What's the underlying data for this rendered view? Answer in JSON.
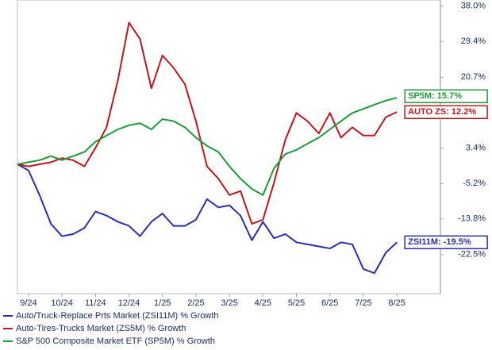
{
  "chart_data": {
    "type": "line",
    "x": [
      -0.33,
      0,
      0.33,
      0.67,
      1,
      1.33,
      1.67,
      2,
      2.33,
      2.67,
      3,
      3.33,
      3.67,
      4,
      4.33,
      4.67,
      5,
      5.33,
      5.67,
      6,
      6.33,
      6.67,
      7,
      7.33,
      7.67,
      8,
      8.33,
      8.67,
      9,
      9.33,
      9.67,
      10,
      10.33,
      10.67,
      11
    ],
    "xlim": [
      -0.33,
      12.3
    ],
    "xticks": [
      {
        "value": 0,
        "label": "9/24"
      },
      {
        "value": 1,
        "label": "10/24"
      },
      {
        "value": 2,
        "label": "11/24"
      },
      {
        "value": 3,
        "label": "12/24"
      },
      {
        "value": 4,
        "label": "1/25"
      },
      {
        "value": 5,
        "label": "2/25"
      },
      {
        "value": 6,
        "label": "3/25"
      },
      {
        "value": 7,
        "label": "4/25"
      },
      {
        "value": 8,
        "label": "5/25"
      },
      {
        "value": 9,
        "label": "6/25"
      },
      {
        "value": 10,
        "label": "7/25"
      },
      {
        "value": 11,
        "label": "8/25"
      }
    ],
    "ylim": [
      -32,
      39.5
    ],
    "yticks": [
      {
        "value": 38,
        "label": "38.0%"
      },
      {
        "value": 29.4,
        "label": "29.4%"
      },
      {
        "value": 20.7,
        "label": "20.7%"
      },
      {
        "value": 3.4,
        "label": "3.4%"
      },
      {
        "value": -5.2,
        "label": "-5.2%"
      },
      {
        "value": -13.8,
        "label": "-13.8%"
      },
      {
        "value": -22.5,
        "label": "-22.5%"
      }
    ],
    "series": [
      {
        "name": "Auto/Truck-Replace Prts Market (ZSI11M) % Growth",
        "color": "#2b2fa8",
        "values": [
          -0.5,
          -2,
          -8,
          -15,
          -18,
          -17.5,
          -16,
          -12,
          -13,
          -14.5,
          -15.5,
          -18,
          -14.5,
          -12.5,
          -15.5,
          -15.5,
          -14,
          -9,
          -11,
          -10.5,
          -13,
          -19,
          -14.5,
          -18.5,
          -17.5,
          -19.5,
          -20,
          -20.5,
          -21,
          -19.5,
          -20,
          -26,
          -27,
          -22,
          -19.5
        ]
      },
      {
        "name": "Auto-Tires-Trucks Market (ZS5M) % Growth",
        "color": "#c0161c",
        "values": [
          -0.5,
          -1,
          -0.5,
          0,
          1,
          0.5,
          -1,
          3.5,
          8.5,
          20,
          34,
          30,
          18,
          26,
          23,
          19,
          10,
          -1,
          -4,
          -8,
          -7,
          -15,
          -14,
          -5,
          5.5,
          12,
          10,
          7,
          12,
          6,
          8.5,
          6.5,
          6.5,
          11,
          12.2
        ]
      },
      {
        "name": "S&P 500 Composite Market ETF (SP5M) % Growth",
        "color": "#1e9a3a",
        "values": [
          -0.5,
          0,
          0.5,
          1.5,
          0.5,
          1.5,
          2.5,
          5,
          6.5,
          8,
          9,
          9.5,
          8,
          10.5,
          10,
          8.5,
          6,
          4,
          2.5,
          -1,
          -4,
          -6.5,
          -8,
          -1.5,
          2,
          3,
          4.5,
          6,
          8,
          10,
          12,
          13,
          14,
          15,
          15.7
        ]
      }
    ],
    "annotations": [
      "ZSI11M: -19.5%",
      "AUTO ZS: 12.2%",
      "SP5M: 15.7%"
    ]
  }
}
